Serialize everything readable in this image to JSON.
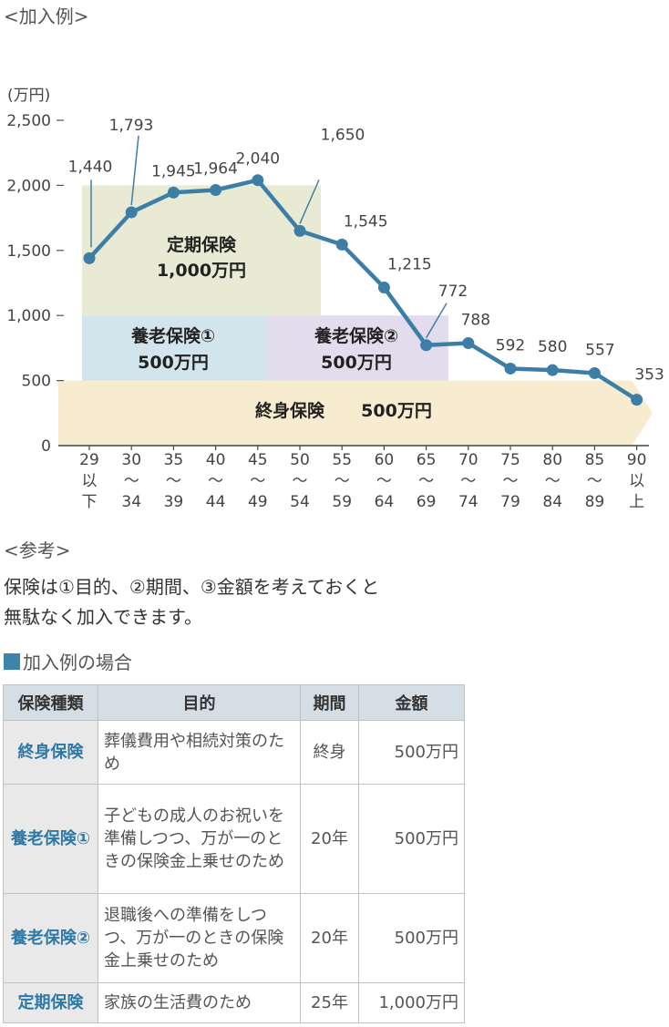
{
  "heading_example": "<加入例>",
  "chart_data": {
    "type": "line",
    "ylabel": "(万円)",
    "ylim": [
      0,
      2500
    ],
    "yticks": [
      "2,500",
      "2,000",
      "1,500",
      "1,000",
      "500",
      "0"
    ],
    "categories": [
      "29以下",
      "30〜34",
      "35〜39",
      "40〜44",
      "45〜49",
      "50〜54",
      "55〜59",
      "60〜64",
      "65〜69",
      "70〜74",
      "75〜79",
      "80〜84",
      "85〜89",
      "90以上"
    ],
    "category_lines": [
      [
        "29",
        "以",
        "下"
      ],
      [
        "30",
        "〜",
        "34"
      ],
      [
        "35",
        "〜",
        "39"
      ],
      [
        "40",
        "〜",
        "44"
      ],
      [
        "45",
        "〜",
        "49"
      ],
      [
        "50",
        "〜",
        "54"
      ],
      [
        "55",
        "〜",
        "59"
      ],
      [
        "60",
        "〜",
        "64"
      ],
      [
        "65",
        "〜",
        "69"
      ],
      [
        "70",
        "〜",
        "74"
      ],
      [
        "75",
        "〜",
        "79"
      ],
      [
        "80",
        "〜",
        "84"
      ],
      [
        "85",
        "〜",
        "89"
      ],
      [
        "90",
        "以",
        "上"
      ]
    ],
    "values": [
      1440,
      1793,
      1945,
      1964,
      2040,
      1650,
      1545,
      1215,
      772,
      788,
      592,
      580,
      557,
      353
    ],
    "value_labels": [
      "1,440",
      "1,793",
      "1,945",
      "1,964",
      "2,040",
      "1,650",
      "1,545",
      "1,215",
      "772",
      "788",
      "592",
      "580",
      "557",
      "353"
    ],
    "line_color": "#3c7ea6",
    "coverage": [
      {
        "name": "定期保険",
        "amount": "1,000万円",
        "value": 1000,
        "from_category": "29以下",
        "to_category": "50〜54",
        "color": "#e8ead3"
      },
      {
        "name": "養老保険①",
        "amount": "500万円",
        "value": 500,
        "from_category": "29以下",
        "to_category": "45〜49",
        "color": "#d2e5ec"
      },
      {
        "name": "養老保険②",
        "amount": "500万円",
        "value": 500,
        "from_category": "45〜49",
        "to_category": "65〜69",
        "color": "#e2dcec"
      },
      {
        "name": "終身保険",
        "amount": "500万円",
        "value": 500,
        "from_category": "29以下",
        "to_category": "90以上",
        "color": "#f7ecd0"
      }
    ]
  },
  "reference": {
    "heading": "<参考>",
    "lines": [
      "保険は①目的、②期間、③金額を考えておくと",
      "無駄なく加入できます。"
    ]
  },
  "table": {
    "title": "加入例の場合",
    "square_color": "#3c84a8",
    "headers": [
      "保険種類",
      "目的",
      "期間",
      "金額"
    ],
    "rows": [
      {
        "type": "終身保険",
        "purpose": "葬儀費用や相続対策のため",
        "period": "終身",
        "amount": "500万円"
      },
      {
        "type": "養老保険①",
        "purpose": "子どもの成人のお祝いを準備しつつ、万が一のときの保険金上乗せのため",
        "period": "20年",
        "amount": "500万円"
      },
      {
        "type": "養老保険②",
        "purpose": "退職後への準備をしつつ、万が一のときの保険金上乗せのため",
        "period": "20年",
        "amount": "500万円"
      },
      {
        "type": "定期保険",
        "purpose": "家族の生活費のため",
        "period": "25年",
        "amount": "1,000万円"
      }
    ]
  }
}
